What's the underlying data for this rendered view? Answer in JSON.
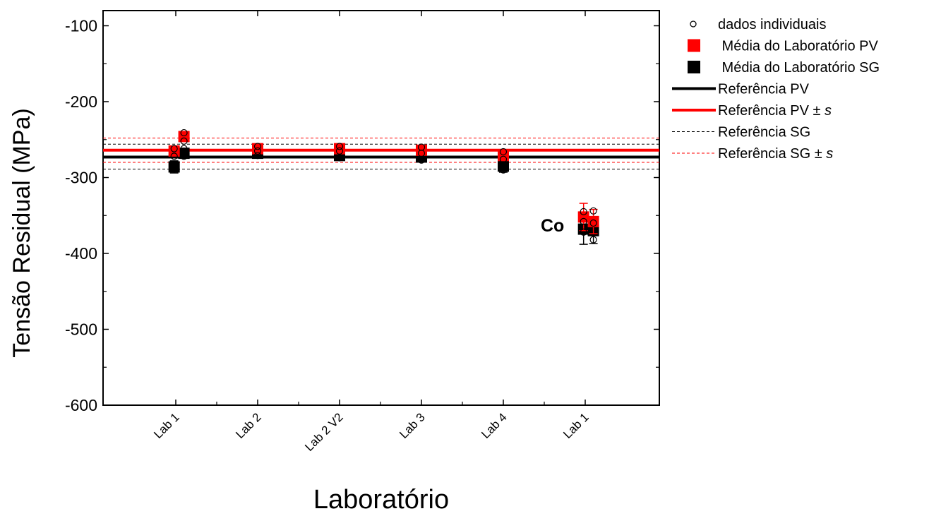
{
  "chart_data": {
    "type": "scatter",
    "title": "",
    "xlabel": "Laboratório",
    "ylabel": "Tensão Residual (MPa)",
    "ylim": [
      -600,
      -80
    ],
    "yticks": [
      -100,
      -200,
      -300,
      -400,
      -500,
      -600
    ],
    "categories": [
      "Lab 1",
      "Lab 2",
      "Lab 2 V2",
      "Lab 3",
      "Lab 4",
      "Lab 1"
    ],
    "grid": false,
    "legend_position": "right",
    "annotations": [
      {
        "text": "Co",
        "category_index": 5,
        "y": -358
      }
    ],
    "reference_lines": [
      {
        "name": "Referência PV",
        "y": -273,
        "color": "#000000",
        "style": "solid"
      },
      {
        "name": "Referência PV ± s",
        "y": -264,
        "color": "#ff0000",
        "style": "solid"
      },
      {
        "name": "Referência SG",
        "y": -256,
        "color": "#000000",
        "style": "dashed"
      },
      {
        "name": "Referência SG",
        "y": -289,
        "color": "#000000",
        "style": "dashed"
      },
      {
        "name": "Referência SG ± s",
        "y": -248,
        "color": "#ff0000",
        "style": "dashed"
      },
      {
        "name": "Referência SG ± s",
        "y": -280,
        "color": "#ff0000",
        "style": "dashed"
      }
    ],
    "series": [
      {
        "name": "Média do Laboratório PV",
        "marker": "square",
        "color": "#ff0000",
        "points": [
          {
            "cat": 0,
            "offset": -0.02,
            "y": -265,
            "err": 5
          },
          {
            "cat": 0,
            "offset": 0.1,
            "y": -246,
            "err": 6
          },
          {
            "cat": 1,
            "offset": 0.0,
            "y": -262,
            "err": 4
          },
          {
            "cat": 2,
            "offset": 0.0,
            "y": -262,
            "err": 4
          },
          {
            "cat": 3,
            "offset": 0.0,
            "y": -264,
            "err": 4
          },
          {
            "cat": 4,
            "offset": 0.0,
            "y": -271,
            "err": 5
          },
          {
            "cat": 5,
            "offset": -0.02,
            "y": -352,
            "err": 18
          },
          {
            "cat": 5,
            "offset": 0.1,
            "y": -358,
            "err": 16
          }
        ]
      },
      {
        "name": "Média do Laboratório SG",
        "marker": "square",
        "color": "#000000",
        "points": [
          {
            "cat": 0,
            "offset": -0.02,
            "y": -286,
            "err": 8
          },
          {
            "cat": 0,
            "offset": 0.1,
            "y": -268,
            "err": 6
          },
          {
            "cat": 1,
            "offset": 0.0,
            "y": -268,
            "err": 5
          },
          {
            "cat": 2,
            "offset": 0.0,
            "y": -271,
            "err": 5
          },
          {
            "cat": 3,
            "offset": 0.0,
            "y": -273,
            "err": 6
          },
          {
            "cat": 4,
            "offset": 0.0,
            "y": -285,
            "err": 8
          },
          {
            "cat": 5,
            "offset": -0.02,
            "y": -368,
            "err": 20
          },
          {
            "cat": 5,
            "offset": 0.1,
            "y": -370,
            "err": 17
          }
        ]
      },
      {
        "name": "dados individuais",
        "marker": "open-circle",
        "color": "#000000",
        "points": [
          {
            "cat": 0,
            "offset": -0.02,
            "y": -262
          },
          {
            "cat": 0,
            "offset": -0.02,
            "y": -272
          },
          {
            "cat": 0,
            "offset": -0.02,
            "y": -288
          },
          {
            "cat": 0,
            "offset": 0.1,
            "y": -241
          },
          {
            "cat": 0,
            "offset": 0.1,
            "y": -252
          },
          {
            "cat": 0,
            "offset": 0.1,
            "y": -262
          },
          {
            "cat": 0,
            "offset": 0.1,
            "y": -272
          },
          {
            "cat": 1,
            "offset": 0.0,
            "y": -259
          },
          {
            "cat": 1,
            "offset": 0.0,
            "y": -265
          },
          {
            "cat": 1,
            "offset": 0.0,
            "y": -271
          },
          {
            "cat": 2,
            "offset": 0.0,
            "y": -259
          },
          {
            "cat": 2,
            "offset": 0.0,
            "y": -265
          },
          {
            "cat": 2,
            "offset": 0.0,
            "y": -274
          },
          {
            "cat": 3,
            "offset": 0.0,
            "y": -260
          },
          {
            "cat": 3,
            "offset": 0.0,
            "y": -268
          },
          {
            "cat": 3,
            "offset": 0.0,
            "y": -277
          },
          {
            "cat": 4,
            "offset": 0.0,
            "y": -266
          },
          {
            "cat": 4,
            "offset": 0.0,
            "y": -276
          },
          {
            "cat": 4,
            "offset": 0.0,
            "y": -290
          },
          {
            "cat": 5,
            "offset": -0.02,
            "y": -345
          },
          {
            "cat": 5,
            "offset": -0.02,
            "y": -358
          },
          {
            "cat": 5,
            "offset": -0.02,
            "y": -372
          },
          {
            "cat": 5,
            "offset": 0.1,
            "y": -344
          },
          {
            "cat": 5,
            "offset": 0.1,
            "y": -360
          },
          {
            "cat": 5,
            "offset": 0.1,
            "y": -382
          }
        ]
      }
    ],
    "legend": [
      {
        "label": "dados individuais",
        "symbol": "open-circle",
        "color": "#000000"
      },
      {
        "label": " Média do Laboratório PV",
        "symbol": "square",
        "color": "#ff0000"
      },
      {
        "label": " Média do Laboratório SG",
        "symbol": "square",
        "color": "#000000"
      },
      {
        "label": "Referência PV",
        "symbol": "solid-line",
        "color": "#000000"
      },
      {
        "label": "Referência PV ± ",
        "italic": "s",
        "symbol": "solid-line",
        "color": "#ff0000"
      },
      {
        "label": "Referência SG",
        "symbol": "dashed-line",
        "color": "#000000"
      },
      {
        "label": "Referência SG ± ",
        "italic": "s",
        "symbol": "dashed-line",
        "color": "#ff0000"
      }
    ]
  }
}
